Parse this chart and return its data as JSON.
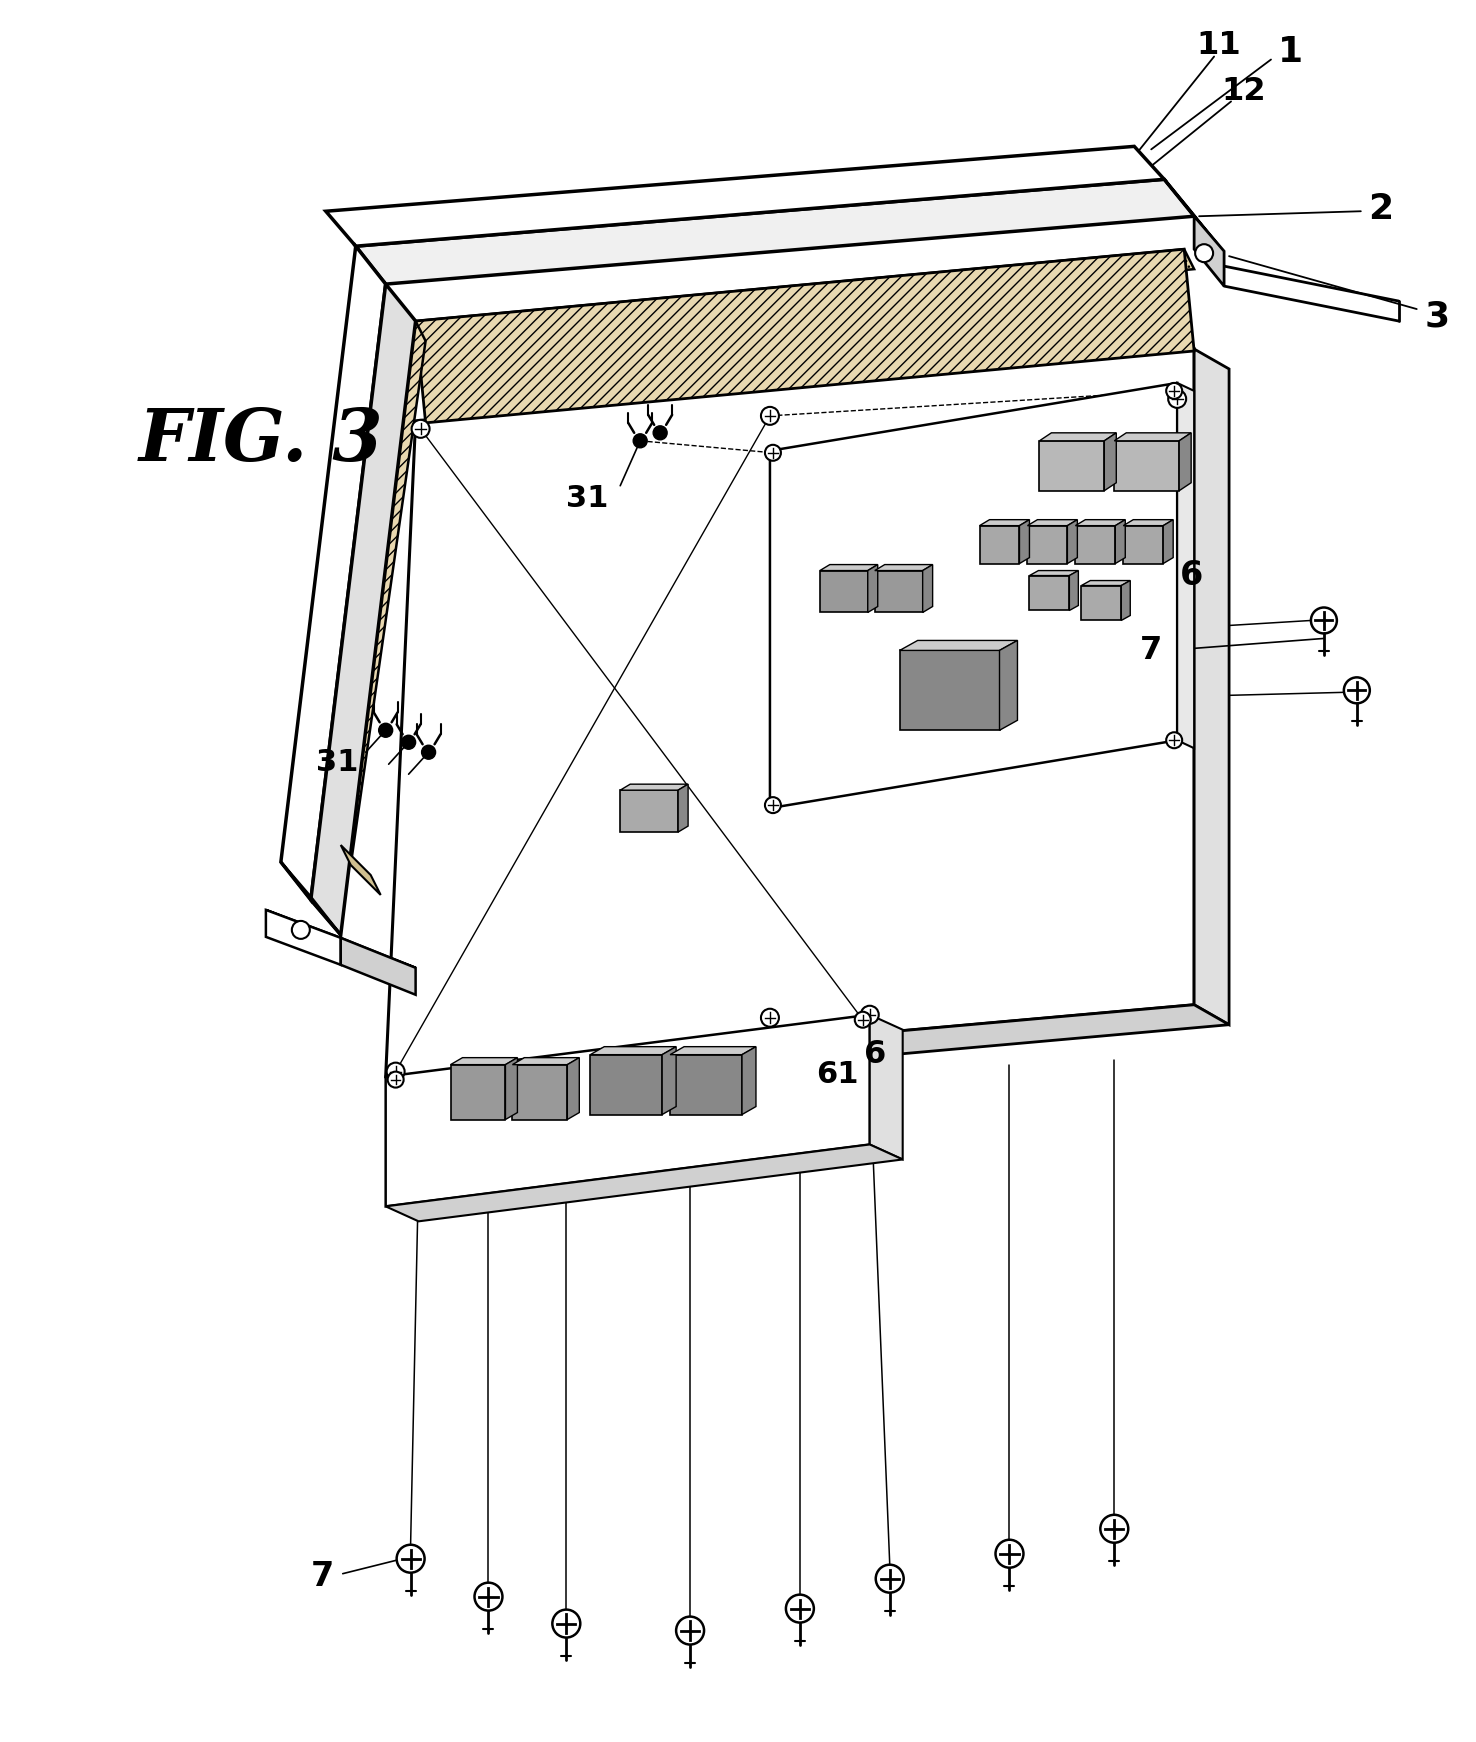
{
  "bg": "#ffffff",
  "fig_w": 14.76,
  "fig_h": 17.42,
  "dpi": 100
}
